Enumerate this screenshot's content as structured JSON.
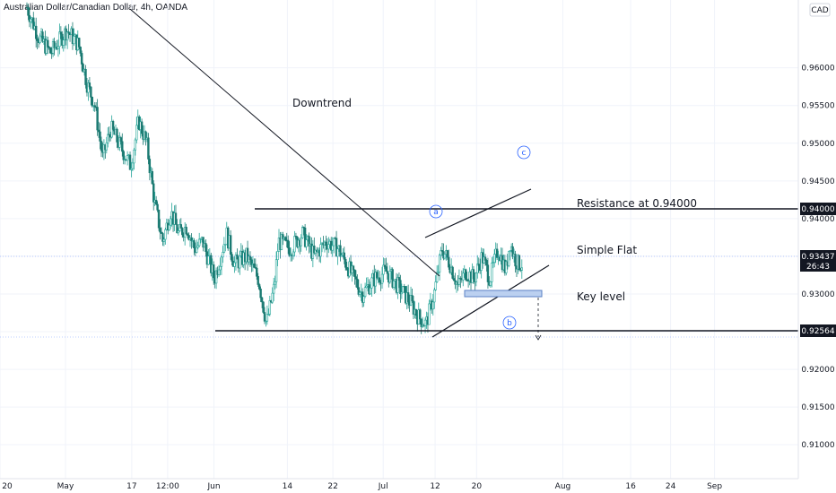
{
  "title": "Australian Dollar/Canadian Dollar, 4h, OANDA",
  "currency": "CAD",
  "chart_data": {
    "type": "candlestick",
    "symbol": "AUDCAD",
    "interval": "4h",
    "broker": "OANDA",
    "ylim": [
      0.9055,
      0.969
    ],
    "y_ticks": [
      "0.96000",
      "0.95500",
      "0.95000",
      "0.94500",
      "0.94000",
      "0.93500",
      "0.93000",
      "0.92500",
      "0.92000",
      "0.91500",
      "0.91000"
    ],
    "y_tick_values": [
      0.96,
      0.955,
      0.95,
      0.945,
      0.94,
      0.935,
      0.93,
      0.925,
      0.92,
      0.915,
      0.91
    ],
    "x_ticks": [
      "20",
      "May",
      "17",
      "12:00",
      "Jun",
      "14",
      "22",
      "Jul",
      "12",
      "20",
      "Aug",
      "16",
      "24",
      "Sep"
    ],
    "x_tick_values": [
      0.0,
      0.082,
      0.165,
      0.21,
      0.268,
      0.36,
      0.417,
      0.48,
      0.545,
      0.597,
      0.705,
      0.79,
      0.84,
      0.895
    ],
    "price_path": [
      [
        0.0,
        0.968
      ],
      [
        0.015,
        0.964
      ],
      [
        0.03,
        0.962
      ],
      [
        0.05,
        0.965
      ],
      [
        0.065,
        0.963
      ],
      [
        0.075,
        0.958
      ],
      [
        0.085,
        0.955
      ],
      [
        0.095,
        0.948
      ],
      [
        0.105,
        0.952
      ],
      [
        0.12,
        0.949
      ],
      [
        0.13,
        0.947
      ],
      [
        0.14,
        0.953
      ],
      [
        0.15,
        0.95
      ],
      [
        0.16,
        0.942
      ],
      [
        0.17,
        0.937
      ],
      [
        0.18,
        0.941
      ],
      [
        0.19,
        0.938
      ],
      [
        0.2,
        0.939
      ],
      [
        0.21,
        0.936
      ],
      [
        0.22,
        0.937
      ],
      [
        0.235,
        0.932
      ],
      [
        0.25,
        0.938
      ],
      [
        0.26,
        0.934
      ],
      [
        0.275,
        0.935
      ],
      [
        0.29,
        0.932
      ],
      [
        0.3,
        0.926
      ],
      [
        0.31,
        0.931
      ],
      [
        0.315,
        0.937
      ],
      [
        0.33,
        0.936
      ],
      [
        0.345,
        0.938
      ],
      [
        0.36,
        0.935
      ],
      [
        0.375,
        0.937
      ],
      [
        0.39,
        0.936
      ],
      [
        0.405,
        0.933
      ],
      [
        0.42,
        0.93
      ],
      [
        0.435,
        0.932
      ],
      [
        0.45,
        0.933
      ],
      [
        0.465,
        0.931
      ],
      [
        0.48,
        0.929
      ],
      [
        0.49,
        0.927
      ],
      [
        0.5,
        0.926
      ],
      [
        0.51,
        0.93
      ],
      [
        0.52,
        0.936
      ],
      [
        0.53,
        0.934
      ],
      [
        0.54,
        0.931
      ],
      [
        0.55,
        0.933
      ],
      [
        0.56,
        0.932
      ],
      [
        0.57,
        0.935
      ],
      [
        0.58,
        0.932
      ],
      [
        0.59,
        0.936
      ],
      [
        0.6,
        0.933
      ],
      [
        0.605,
        0.937
      ],
      [
        0.61,
        0.935
      ],
      [
        0.615,
        0.934
      ],
      [
        0.62,
        0.934
      ]
    ],
    "horizontal_levels": [
      {
        "label": "0.94000",
        "value": 0.94,
        "color": "#131722"
      },
      {
        "label": "0.92564",
        "value": 0.92564,
        "color": "#131722"
      }
    ],
    "last_price": {
      "label": "0.93437",
      "value": 0.93437,
      "countdown": "26:43"
    }
  },
  "annotations": {
    "downtrend": "Downtrend",
    "resistance": "Resistance at 0.94000",
    "simple_flat": "Simple Flat",
    "key_level": "Key level",
    "wave_a": "a",
    "wave_b": "b",
    "wave_c": "c"
  },
  "colors": {
    "up": "#26a69a",
    "down": "#26a69a",
    "line": "#131722",
    "grid": "#f0f3fa",
    "accent": "#2962ff",
    "label_bg": "#131722",
    "last_bg": "#131722"
  }
}
